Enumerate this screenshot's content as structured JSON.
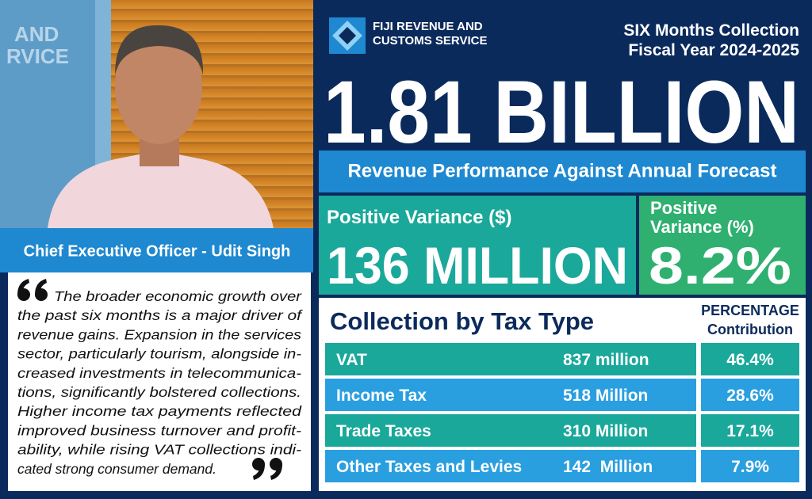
{
  "photo": {
    "background_text": [
      "AND",
      "RVICE"
    ],
    "caption": "Chief Executive Officer - Udit Singh"
  },
  "quote": {
    "lines": [
      "The broader economic growth over",
      "the past six months is a major driver of",
      "revenue gains. Expansion in the services",
      "sector, particularly tourism, alongside in-",
      "creased investments in telecommunica-",
      "tions, significantly bolstered collections.",
      "Higher income tax payments reflected",
      "improved business turnover and profit-",
      "ability, while rising VAT collections indi-",
      "cated strong consumer demand."
    ]
  },
  "header": {
    "logo_lines": [
      "FIJI REVENUE AND",
      "CUSTOMS SERVICE"
    ],
    "period_lines": [
      "SIX Months Collection",
      "Fiscal Year 2024-2025"
    ]
  },
  "headline": "1.81 BILLION",
  "performance": {
    "title": "Revenue Performance Against Annual Forecast",
    "variance_amount": {
      "label": "Positive Variance ($)",
      "value": "136 MILLION"
    },
    "variance_percent": {
      "label_lines": [
        "Positive",
        "Variance (%)"
      ],
      "value": "8.2%"
    }
  },
  "collection": {
    "title": "Collection by Tax Type",
    "column_header_lines": [
      "PERCENTAGE",
      "Contribution"
    ],
    "rows": [
      [
        "VAT",
        "837 million",
        "46.4%"
      ],
      [
        "Income Tax",
        "518 Million",
        "28.6%"
      ],
      [
        "Trade Taxes",
        "310 Million",
        "17.1%"
      ],
      [
        "Other Taxes and Levies",
        "142  Million",
        "7.9%"
      ]
    ]
  }
}
